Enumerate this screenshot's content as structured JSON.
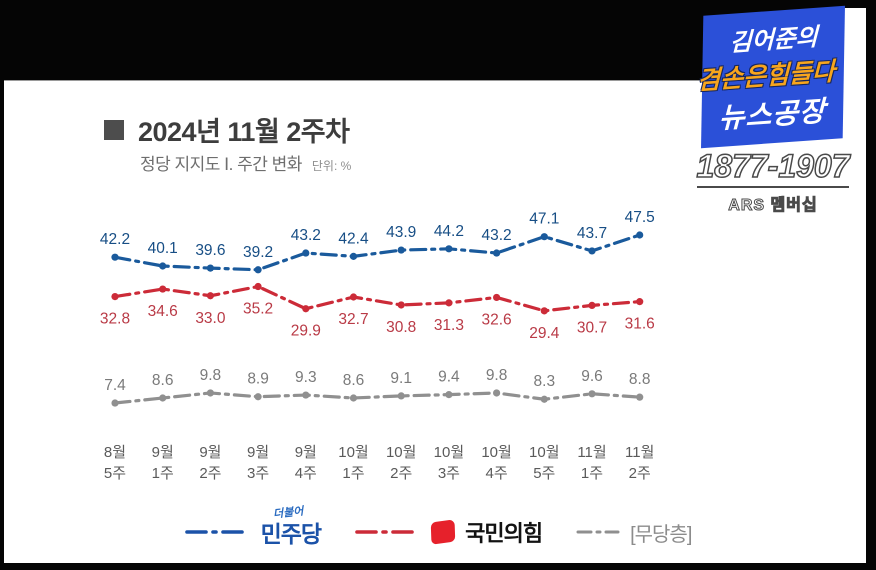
{
  "header": {
    "title": "2024년 11월 2주차",
    "subtitle": "정당 지지도 Ⅰ. 주간 변화",
    "unit_label": "단위: %"
  },
  "branding": {
    "line1": "김어준의",
    "line2": "겸손은힘들다",
    "line3": "뉴스공장",
    "phone": "1877-1907",
    "ars_label": "ARS 멤버십",
    "box_color": "#2b50d8",
    "accent_color": "#f7a51d"
  },
  "chart_data": {
    "type": "line",
    "title": "정당 지지도 주간 변화",
    "unit": "%",
    "grid": false,
    "legend_position": "bottom",
    "ylim": [
      5,
      50
    ],
    "line_style": "dash-dot",
    "categories": [
      [
        "8월",
        "5주"
      ],
      [
        "9월",
        "1주"
      ],
      [
        "9월",
        "2주"
      ],
      [
        "9월",
        "3주"
      ],
      [
        "9월",
        "4주"
      ],
      [
        "10월",
        "1주"
      ],
      [
        "10월",
        "2주"
      ],
      [
        "10월",
        "3주"
      ],
      [
        "10월",
        "4주"
      ],
      [
        "10월",
        "5주"
      ],
      [
        "11월",
        "1주"
      ],
      [
        "11월",
        "2주"
      ]
    ],
    "series": [
      {
        "name": "민주당",
        "color": "#1a5a9c",
        "label_color": "#174e85",
        "label_position": "above",
        "values": [
          42.2,
          40.1,
          39.6,
          39.2,
          43.2,
          42.4,
          43.9,
          44.2,
          43.2,
          47.1,
          43.7,
          47.5
        ]
      },
      {
        "name": "국민의힘",
        "color": "#cc2b38",
        "label_color": "#b93a46",
        "label_position": "below",
        "values": [
          32.8,
          34.6,
          33.0,
          35.2,
          29.9,
          32.7,
          30.8,
          31.3,
          32.6,
          29.4,
          30.7,
          31.6
        ]
      },
      {
        "name": "무당층",
        "color": "#909090",
        "label_color": "#7a7a7a",
        "label_position": "above",
        "values": [
          7.4,
          8.6,
          9.8,
          8.9,
          9.3,
          8.6,
          9.1,
          9.4,
          9.8,
          8.3,
          9.6,
          8.8
        ]
      }
    ],
    "legend": [
      {
        "label": "민주당",
        "sub": "더불어"
      },
      {
        "label": "국민의힘"
      },
      {
        "label": "[무당층]"
      }
    ]
  }
}
